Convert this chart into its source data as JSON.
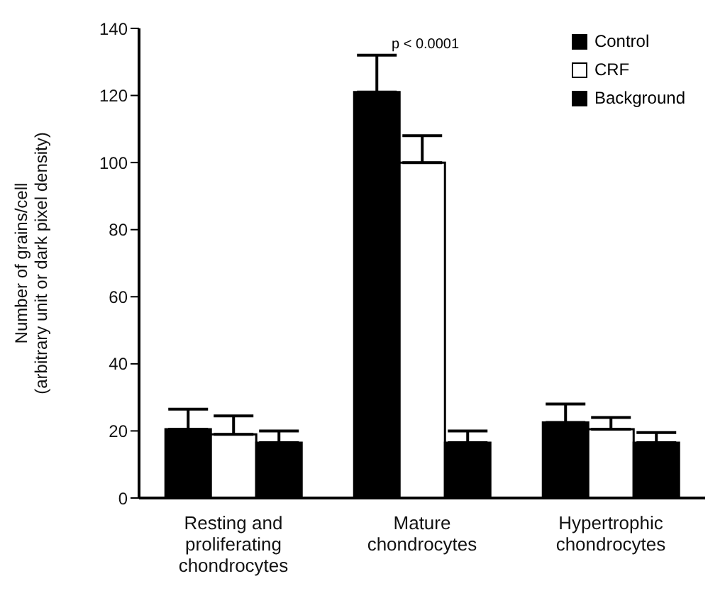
{
  "chart_data": {
    "type": "bar",
    "ylabel": "Number of grains/cell\n(arbitrary unit or dark pixel density)",
    "categories": [
      "Resting and proliferating chondrocytes",
      "Mature chondrocytes",
      "Hypertrophic chondrocytes"
    ],
    "series": [
      {
        "name": "Control",
        "color": "#000000",
        "values": [
          20.5,
          121,
          22.5
        ],
        "errors": [
          [
            20.5,
            26.5
          ],
          [
            121,
            132
          ],
          [
            22.5,
            28
          ]
        ]
      },
      {
        "name": "CRF",
        "color": "#ffffff",
        "values": [
          19,
          100,
          20.5
        ],
        "errors": [
          [
            19,
            24.5
          ],
          [
            100,
            108
          ],
          [
            20.5,
            24
          ]
        ]
      },
      {
        "name": "Background",
        "color": "#000000",
        "values": [
          16.5,
          16.5,
          16.5
        ],
        "errors": [
          [
            16.5,
            20
          ],
          [
            16.5,
            20
          ],
          [
            16.5,
            19.5
          ]
        ]
      }
    ],
    "annotations": [
      "p < 0.0001"
    ],
    "ylim": [
      0,
      140
    ],
    "yticks": [
      0,
      20,
      40,
      60,
      80,
      100,
      120,
      140
    ],
    "legend": "top right",
    "grid": false
  }
}
